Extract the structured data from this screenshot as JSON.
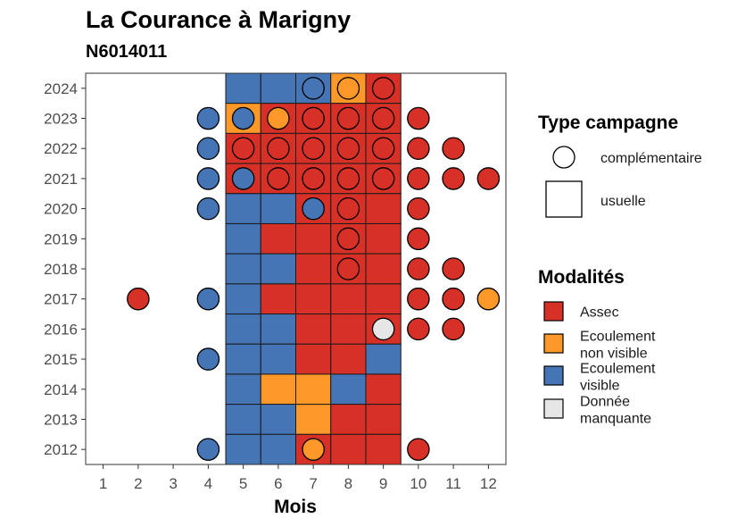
{
  "chart_data": {
    "type": "heatmap",
    "title": "La Courance à Marigny",
    "subtitle": "N6014011",
    "xlabel": "Mois",
    "ylabel": "",
    "x_ticks": [
      1,
      2,
      3,
      4,
      5,
      6,
      7,
      8,
      9,
      10,
      11,
      12
    ],
    "y_ticks": [
      2012,
      2013,
      2014,
      2015,
      2016,
      2017,
      2018,
      2019,
      2020,
      2021,
      2022,
      2023,
      2024
    ],
    "xlim": [
      0.5,
      12.5
    ],
    "ylim": [
      2011.5,
      2024.5
    ],
    "colors": {
      "Assec": "#d73027",
      "Ecoulement non visible": "#fe9929",
      "Ecoulement visible": "#4575b4",
      "Donnée manquante": "#e6e6e6"
    },
    "legend_type": {
      "title": "Type campagne",
      "items": [
        {
          "label": "complémentaire",
          "shape": "circle"
        },
        {
          "label": "usuelle",
          "shape": "square"
        }
      ]
    },
    "legend_modalites": {
      "title": "Modalités",
      "items": [
        {
          "key": "Assec",
          "label_lines": [
            "Assec"
          ]
        },
        {
          "key": "Ecoulement non visible",
          "label_lines": [
            "Ecoulement",
            "non visible"
          ]
        },
        {
          "key": "Ecoulement visible",
          "label_lines": [
            "Ecoulement",
            "visible"
          ]
        },
        {
          "key": "Donnée manquante",
          "label_lines": [
            "Donnée",
            "manquante"
          ]
        }
      ]
    },
    "usuelle": [
      {
        "year": 2024,
        "values": {
          "5": "Ecoulement visible",
          "6": "Ecoulement visible",
          "7": "Ecoulement visible",
          "8": "Ecoulement non visible",
          "9": "Assec"
        }
      },
      {
        "year": 2023,
        "values": {
          "5": "Ecoulement non visible",
          "6": "Assec",
          "7": "Assec",
          "8": "Assec",
          "9": "Assec"
        }
      },
      {
        "year": 2022,
        "values": {
          "5": "Assec",
          "6": "Assec",
          "7": "Assec",
          "8": "Assec",
          "9": "Assec"
        }
      },
      {
        "year": 2021,
        "values": {
          "5": "Assec",
          "6": "Assec",
          "7": "Assec",
          "8": "Assec",
          "9": "Assec"
        }
      },
      {
        "year": 2020,
        "values": {
          "5": "Ecoulement visible",
          "6": "Ecoulement visible",
          "7": "Assec",
          "8": "Assec",
          "9": "Assec"
        }
      },
      {
        "year": 2019,
        "values": {
          "5": "Ecoulement visible",
          "6": "Assec",
          "7": "Assec",
          "8": "Assec",
          "9": "Assec"
        }
      },
      {
        "year": 2018,
        "values": {
          "5": "Ecoulement visible",
          "6": "Ecoulement visible",
          "7": "Assec",
          "8": "Assec",
          "9": "Assec"
        }
      },
      {
        "year": 2017,
        "values": {
          "5": "Ecoulement visible",
          "6": "Assec",
          "7": "Assec",
          "8": "Assec",
          "9": "Assec"
        }
      },
      {
        "year": 2016,
        "values": {
          "5": "Ecoulement visible",
          "6": "Ecoulement visible",
          "7": "Assec",
          "8": "Assec",
          "9": "Assec"
        }
      },
      {
        "year": 2015,
        "values": {
          "5": "Ecoulement visible",
          "6": "Ecoulement visible",
          "7": "Assec",
          "8": "Assec",
          "9": "Ecoulement visible"
        }
      },
      {
        "year": 2014,
        "values": {
          "5": "Ecoulement visible",
          "6": "Ecoulement non visible",
          "7": "Ecoulement non visible",
          "8": "Ecoulement visible",
          "9": "Assec"
        }
      },
      {
        "year": 2013,
        "values": {
          "5": "Ecoulement visible",
          "6": "Ecoulement visible",
          "7": "Ecoulement non visible",
          "8": "Assec",
          "9": "Assec"
        }
      },
      {
        "year": 2012,
        "values": {
          "5": "Ecoulement visible",
          "6": "Ecoulement visible",
          "7": "Assec",
          "8": "Assec",
          "9": "Assec"
        }
      }
    ],
    "complementaire": [
      {
        "year": 2024,
        "month": 7,
        "value": "Ecoulement visible"
      },
      {
        "year": 2024,
        "month": 8,
        "value": "Ecoulement non visible"
      },
      {
        "year": 2024,
        "month": 9,
        "value": "Assec"
      },
      {
        "year": 2023,
        "month": 4,
        "value": "Ecoulement visible"
      },
      {
        "year": 2023,
        "month": 5,
        "value": "Ecoulement visible"
      },
      {
        "year": 2023,
        "month": 6,
        "value": "Ecoulement non visible"
      },
      {
        "year": 2023,
        "month": 7,
        "value": "Assec"
      },
      {
        "year": 2023,
        "month": 8,
        "value": "Assec"
      },
      {
        "year": 2023,
        "month": 9,
        "value": "Assec"
      },
      {
        "year": 2023,
        "month": 10,
        "value": "Assec"
      },
      {
        "year": 2022,
        "month": 4,
        "value": "Ecoulement visible"
      },
      {
        "year": 2022,
        "month": 5,
        "value": "Assec"
      },
      {
        "year": 2022,
        "month": 6,
        "value": "Assec"
      },
      {
        "year": 2022,
        "month": 7,
        "value": "Assec"
      },
      {
        "year": 2022,
        "month": 8,
        "value": "Assec"
      },
      {
        "year": 2022,
        "month": 9,
        "value": "Assec"
      },
      {
        "year": 2022,
        "month": 10,
        "value": "Assec"
      },
      {
        "year": 2022,
        "month": 11,
        "value": "Assec"
      },
      {
        "year": 2021,
        "month": 4,
        "value": "Ecoulement visible"
      },
      {
        "year": 2021,
        "month": 5,
        "value": "Ecoulement visible"
      },
      {
        "year": 2021,
        "month": 6,
        "value": "Assec"
      },
      {
        "year": 2021,
        "month": 7,
        "value": "Assec"
      },
      {
        "year": 2021,
        "month": 8,
        "value": "Assec"
      },
      {
        "year": 2021,
        "month": 9,
        "value": "Assec"
      },
      {
        "year": 2021,
        "month": 10,
        "value": "Assec"
      },
      {
        "year": 2021,
        "month": 11,
        "value": "Assec"
      },
      {
        "year": 2021,
        "month": 12,
        "value": "Assec"
      },
      {
        "year": 2020,
        "month": 4,
        "value": "Ecoulement visible"
      },
      {
        "year": 2020,
        "month": 7,
        "value": "Ecoulement visible"
      },
      {
        "year": 2020,
        "month": 8,
        "value": "Assec"
      },
      {
        "year": 2020,
        "month": 10,
        "value": "Assec"
      },
      {
        "year": 2019,
        "month": 8,
        "value": "Assec"
      },
      {
        "year": 2019,
        "month": 10,
        "value": "Assec"
      },
      {
        "year": 2018,
        "month": 8,
        "value": "Assec"
      },
      {
        "year": 2018,
        "month": 10,
        "value": "Assec"
      },
      {
        "year": 2018,
        "month": 11,
        "value": "Assec"
      },
      {
        "year": 2017,
        "month": 2,
        "value": "Assec"
      },
      {
        "year": 2017,
        "month": 4,
        "value": "Ecoulement visible"
      },
      {
        "year": 2017,
        "month": 10,
        "value": "Assec"
      },
      {
        "year": 2017,
        "month": 11,
        "value": "Assec"
      },
      {
        "year": 2017,
        "month": 12,
        "value": "Ecoulement non visible"
      },
      {
        "year": 2016,
        "month": 9,
        "value": "Donnée manquante"
      },
      {
        "year": 2016,
        "month": 10,
        "value": "Assec"
      },
      {
        "year": 2016,
        "month": 11,
        "value": "Assec"
      },
      {
        "year": 2015,
        "month": 4,
        "value": "Ecoulement visible"
      },
      {
        "year": 2012,
        "month": 4,
        "value": "Ecoulement visible"
      },
      {
        "year": 2012,
        "month": 7,
        "value": "Ecoulement non visible"
      },
      {
        "year": 2012,
        "month": 10,
        "value": "Assec"
      }
    ]
  }
}
